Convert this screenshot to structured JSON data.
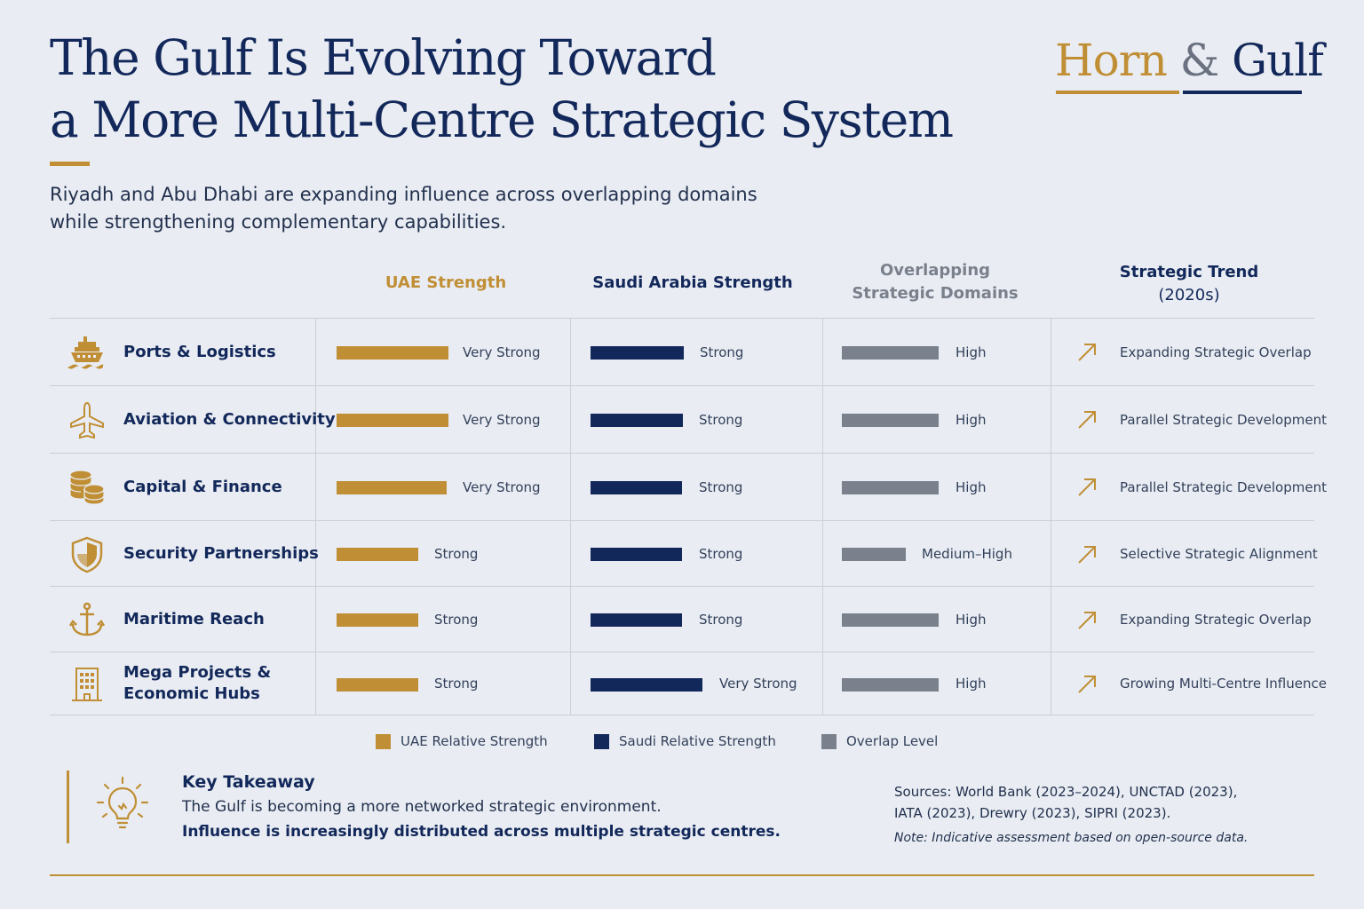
{
  "title": {
    "line1": "The Gulf Is Evolving Toward",
    "line2": "a More Multi-Centre Strategic System"
  },
  "subtitle": {
    "line1": "Riyadh and Abu Dhabi are expanding influence across overlapping domains",
    "line2": "while strengthening complementary capabilities."
  },
  "brand": {
    "horn": "Horn",
    "amp": "&",
    "gulf": "Gulf"
  },
  "columns": {
    "uae": "UAE Strength",
    "saudi": "Saudi Arabia Strength",
    "overlap_line1": "Overlapping",
    "overlap_line2": "Strategic Domains",
    "trend_line1": "Strategic Trend",
    "trend_line2": "(2020s)"
  },
  "colors": {
    "uae": "#c08e35",
    "saudi": "#13285a",
    "overlap": "#7a808c"
  },
  "rows": [
    {
      "icon": "ship-icon",
      "label": "Ports & Logistics",
      "uae": "Very Strong",
      "uae_level": 1.0,
      "saudi": "Strong",
      "saudi_level": 0.83,
      "overlap": "High",
      "overlap_level": 0.87,
      "trend_icon": "arrow-up-right-icon",
      "trend": "Expanding Strategic Overlap"
    },
    {
      "icon": "airplane-icon",
      "label": "Aviation & Connectivity",
      "uae": "Very Strong",
      "uae_level": 1.0,
      "saudi": "Strong",
      "saudi_level": 0.83,
      "overlap": "High",
      "overlap_level": 0.87,
      "trend_icon": "arrow-up-right-icon",
      "trend": "Parallel Strategic Development"
    },
    {
      "icon": "coins-icon",
      "label": "Capital & Finance",
      "uae": "Very Strong",
      "uae_level": 1.0,
      "saudi": "Strong",
      "saudi_level": 0.83,
      "overlap": "High",
      "overlap_level": 0.87,
      "trend_icon": "arrow-up-right-icon",
      "trend": "Parallel Strategic Development"
    },
    {
      "icon": "shield-icon",
      "label": "Security Partnerships",
      "uae": "Strong",
      "uae_level": 0.73,
      "saudi": "Strong",
      "saudi_level": 0.83,
      "overlap": "Medium–High",
      "overlap_level": 0.58,
      "trend_icon": "arrow-up-right-icon",
      "trend": "Selective Strategic Alignment"
    },
    {
      "icon": "anchor-icon",
      "label": "Maritime Reach",
      "uae": "Strong",
      "uae_level": 0.73,
      "saudi": "Strong",
      "saudi_level": 0.83,
      "overlap": "High",
      "overlap_level": 0.87,
      "trend_icon": "arrow-up-right-icon",
      "trend": "Expanding Strategic Overlap"
    },
    {
      "icon": "building-icon",
      "label_line1": "Mega Projects &",
      "label_line2": "Economic Hubs",
      "uae": "Strong",
      "uae_level": 0.73,
      "saudi": "Very Strong",
      "saudi_level": 1.0,
      "overlap": "High",
      "overlap_level": 0.87,
      "trend_icon": "arrow-up-right-icon",
      "trend": "Growing Multi-Centre Influence"
    }
  ],
  "legend": {
    "uae": "UAE Relative Strength",
    "saudi": "Saudi Relative Strength",
    "overlap": "Overlap Level"
  },
  "takeaway": {
    "icon": "lightbulb-icon",
    "title": "Key Takeaway",
    "line1": "The Gulf is becoming a more networked strategic environment.",
    "line2": "Influence is increasingly distributed across multiple strategic centres."
  },
  "sources": {
    "line1": "Sources: World Bank (2023–2024), UNCTAD (2023),",
    "line2": "IATA (2023), Drewry (2023), SIPRI (2023).",
    "note": "Note: Indicative assessment based on open-source data."
  }
}
